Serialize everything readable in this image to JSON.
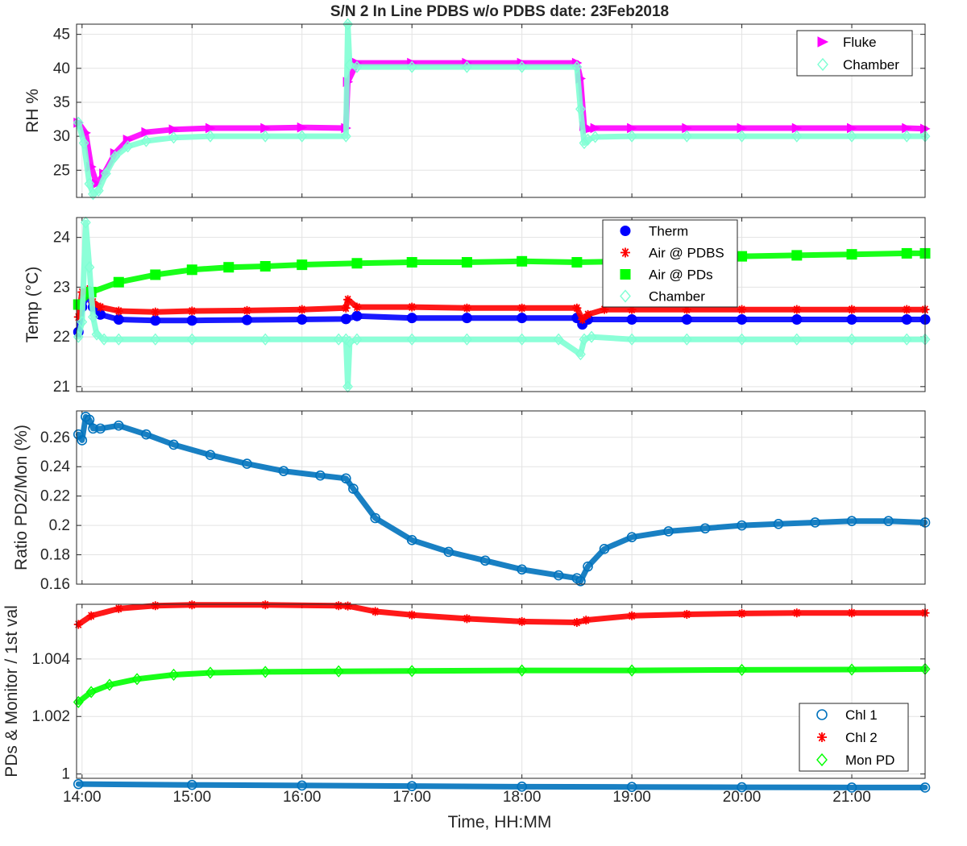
{
  "figure_title": "S/N 2 In Line PDBS w/o PDBS date: 23Feb2018",
  "xlabel": "Time, HH:MM",
  "x_ticks": [
    "14:00",
    "15:00",
    "16:00",
    "17:00",
    "18:00",
    "19:00",
    "20:00",
    "21:00"
  ],
  "colors": {
    "fluke": "#ff00ff",
    "chamber": "#7fffd4",
    "therm": "#0000ff",
    "air_pdbs": "#ff0000",
    "air_pds": "#00ff00",
    "ratio": "#0072bd",
    "chl1": "#0072bd",
    "chl2": "#ff0000",
    "mon_pd": "#00ff00"
  },
  "chart_data": [
    {
      "type": "scatter",
      "title": "S/N 2 In Line PDBS w/o PDBS date: 23Feb2018",
      "xlabel": "",
      "ylabel": "RH %",
      "xlim": [
        "13:57",
        "21:40"
      ],
      "ylim": [
        21,
        46.5
      ],
      "y_ticks": [
        "25",
        "30",
        "35",
        "40",
        "45"
      ],
      "grid": true,
      "legend": "top-right",
      "series": [
        {
          "name": "Fluke",
          "marker": "triangle-right",
          "color": "#ff00ff",
          "x": [
            "13:58",
            "14:02",
            "14:05",
            "14:08",
            "14:12",
            "14:18",
            "14:25",
            "14:35",
            "14:50",
            "15:10",
            "15:40",
            "16:00",
            "16:24",
            "16:25",
            "16:30",
            "17:00",
            "17:30",
            "18:00",
            "18:30",
            "18:32",
            "18:34",
            "18:36",
            "18:40",
            "19:00",
            "19:30",
            "20:00",
            "20:30",
            "21:00",
            "21:30",
            "21:40"
          ],
          "y": [
            32.0,
            30.5,
            25.5,
            23.0,
            24.5,
            27.5,
            29.5,
            30.6,
            31.0,
            31.2,
            31.2,
            31.3,
            31.2,
            38.0,
            40.8,
            40.8,
            40.8,
            40.8,
            40.8,
            38.5,
            31.5,
            31.0,
            31.2,
            31.2,
            31.2,
            31.2,
            31.2,
            31.2,
            31.2,
            31.1
          ]
        },
        {
          "name": "Chamber",
          "marker": "diamond",
          "color": "#7fffd4",
          "x": [
            "13:58",
            "14:01",
            "14:04",
            "14:06",
            "14:09",
            "14:13",
            "14:18",
            "14:25",
            "14:35",
            "14:50",
            "15:10",
            "15:40",
            "16:00",
            "16:24",
            "16:25",
            "16:26",
            "16:30",
            "17:00",
            "17:30",
            "18:00",
            "18:30",
            "18:32",
            "18:34",
            "18:36",
            "18:40",
            "19:00",
            "19:30",
            "20:00",
            "20:30",
            "21:00",
            "21:30",
            "21:40"
          ],
          "y": [
            32.0,
            29.0,
            23.0,
            21.5,
            22.0,
            24.5,
            27.0,
            28.5,
            29.3,
            29.8,
            30.0,
            30.0,
            30.0,
            30.0,
            46.5,
            40.5,
            40.2,
            40.2,
            40.2,
            40.2,
            40.2,
            34.0,
            29.0,
            29.5,
            29.9,
            30.0,
            30.0,
            30.0,
            30.0,
            30.0,
            30.0,
            30.0
          ]
        }
      ]
    },
    {
      "type": "scatter",
      "title": "",
      "xlabel": "",
      "ylabel": "Temp (°C)",
      "xlim": [
        "13:57",
        "21:40"
      ],
      "ylim": [
        20.9,
        24.4
      ],
      "y_ticks": [
        "21",
        "22",
        "23",
        "24"
      ],
      "grid": true,
      "legend": "top-right",
      "series": [
        {
          "name": "Therm",
          "marker": "circle-filled",
          "color": "#0000ff",
          "x": [
            "13:58",
            "14:00",
            "14:03",
            "14:06",
            "14:10",
            "14:20",
            "14:40",
            "15:00",
            "15:30",
            "16:00",
            "16:24",
            "16:30",
            "17:00",
            "17:30",
            "18:00",
            "18:30",
            "18:33",
            "18:36",
            "19:00",
            "19:30",
            "20:00",
            "20:30",
            "21:00",
            "21:30",
            "21:40"
          ],
          "y": [
            22.1,
            22.6,
            22.85,
            22.6,
            22.45,
            22.35,
            22.33,
            22.33,
            22.34,
            22.35,
            22.36,
            22.42,
            22.38,
            22.38,
            22.38,
            22.38,
            22.25,
            22.35,
            22.35,
            22.35,
            22.35,
            22.35,
            22.35,
            22.35,
            22.35
          ]
        },
        {
          "name": "Air @ PDBS",
          "marker": "asterisk",
          "color": "#ff0000",
          "x": [
            "13:58",
            "14:00",
            "14:03",
            "14:06",
            "14:10",
            "14:20",
            "14:40",
            "15:00",
            "15:30",
            "16:00",
            "16:24",
            "16:25",
            "16:30",
            "17:00",
            "17:30",
            "18:00",
            "18:30",
            "18:33",
            "18:36",
            "18:45",
            "19:00",
            "19:30",
            "20:00",
            "20:30",
            "21:00",
            "21:30",
            "21:40"
          ],
          "y": [
            22.4,
            22.9,
            22.95,
            22.7,
            22.6,
            22.52,
            22.5,
            22.52,
            22.53,
            22.55,
            22.58,
            22.75,
            22.6,
            22.6,
            22.58,
            22.58,
            22.58,
            22.35,
            22.45,
            22.55,
            22.55,
            22.55,
            22.55,
            22.55,
            22.55,
            22.55,
            22.55
          ]
        },
        {
          "name": "Air @ PDs",
          "marker": "square-filled",
          "color": "#00ff00",
          "x": [
            "13:58",
            "14:05",
            "14:20",
            "14:40",
            "15:00",
            "15:20",
            "15:40",
            "16:00",
            "16:30",
            "17:00",
            "17:30",
            "18:00",
            "18:30",
            "19:00",
            "19:30",
            "20:00",
            "20:30",
            "21:00",
            "21:30",
            "21:40"
          ],
          "y": [
            22.65,
            22.9,
            23.1,
            23.25,
            23.35,
            23.4,
            23.42,
            23.45,
            23.48,
            23.5,
            23.5,
            23.52,
            23.5,
            23.52,
            23.6,
            23.62,
            23.64,
            23.66,
            23.68,
            23.68
          ]
        },
        {
          "name": "Chamber",
          "marker": "diamond",
          "color": "#7fffd4",
          "x": [
            "13:58",
            "14:00",
            "14:02",
            "14:04",
            "14:06",
            "14:08",
            "14:12",
            "14:20",
            "14:40",
            "15:00",
            "15:40",
            "16:20",
            "16:24",
            "16:25",
            "16:26",
            "16:30",
            "17:00",
            "17:30",
            "18:00",
            "18:20",
            "18:32",
            "18:34",
            "18:38",
            "19:00",
            "19:30",
            "20:00",
            "20:30",
            "21:00",
            "21:30",
            "21:40"
          ],
          "y": [
            22.0,
            22.3,
            24.3,
            23.4,
            22.4,
            22.05,
            21.95,
            21.95,
            21.95,
            21.95,
            21.95,
            21.95,
            21.95,
            21.0,
            21.9,
            21.95,
            21.95,
            21.95,
            21.95,
            21.95,
            21.65,
            21.95,
            22.0,
            21.95,
            21.95,
            21.95,
            21.95,
            21.95,
            21.95,
            21.95
          ]
        }
      ]
    },
    {
      "type": "scatter",
      "title": "",
      "xlabel": "",
      "ylabel": "Ratio PD2/Mon (%)",
      "xlim": [
        "13:57",
        "21:40"
      ],
      "ylim": [
        0.16,
        0.278
      ],
      "y_ticks": [
        "0.16",
        "0.18",
        "0.2",
        "0.22",
        "0.24",
        "0.26"
      ],
      "grid": true,
      "legend": "none",
      "series": [
        {
          "name": "",
          "marker": "circle",
          "color": "#0072bd",
          "x": [
            "13:58",
            "14:00",
            "14:02",
            "14:04",
            "14:06",
            "14:10",
            "14:20",
            "14:35",
            "14:50",
            "15:10",
            "15:30",
            "15:50",
            "16:10",
            "16:24",
            "16:28",
            "16:40",
            "17:00",
            "17:20",
            "17:40",
            "18:00",
            "18:20",
            "18:30",
            "18:32",
            "18:36",
            "18:45",
            "19:00",
            "19:20",
            "19:40",
            "20:00",
            "20:20",
            "20:40",
            "21:00",
            "21:20",
            "21:40"
          ],
          "y": [
            0.262,
            0.258,
            0.274,
            0.272,
            0.266,
            0.266,
            0.268,
            0.262,
            0.255,
            0.248,
            0.242,
            0.237,
            0.234,
            0.232,
            0.225,
            0.205,
            0.19,
            0.182,
            0.176,
            0.17,
            0.166,
            0.164,
            0.162,
            0.172,
            0.184,
            0.192,
            0.196,
            0.198,
            0.2,
            0.201,
            0.202,
            0.203,
            0.203,
            0.202
          ]
        }
      ]
    },
    {
      "type": "scatter",
      "title": "",
      "xlabel": "Time, HH:MM",
      "ylabel": "PDs & Monitor / 1st val",
      "xlim": [
        "13:57",
        "21:40"
      ],
      "ylim": [
        0.99985,
        1.0059
      ],
      "y_ticks": [
        "1",
        "1.002",
        "1.004"
      ],
      "grid": true,
      "legend": "bottom-right",
      "series": [
        {
          "name": "Chl 1",
          "marker": "circle",
          "color": "#0072bd",
          "x": [
            "13:58",
            "15:00",
            "16:00",
            "17:00",
            "18:00",
            "19:00",
            "20:00",
            "21:00",
            "21:40"
          ],
          "y": [
            0.99965,
            0.99962,
            0.9996,
            0.99958,
            0.99956,
            0.99955,
            0.99954,
            0.99953,
            0.99953
          ]
        },
        {
          "name": "Chl 2",
          "marker": "asterisk",
          "color": "#ff0000",
          "x": [
            "13:58",
            "14:05",
            "14:20",
            "14:40",
            "15:00",
            "15:40",
            "16:20",
            "16:25",
            "16:40",
            "17:00",
            "17:30",
            "18:00",
            "18:30",
            "18:35",
            "19:00",
            "19:30",
            "20:00",
            "20:30",
            "21:00",
            "21:40"
          ],
          "y": [
            1.0052,
            1.0055,
            1.00575,
            1.00585,
            1.00588,
            1.00588,
            1.00585,
            1.00584,
            1.00565,
            1.00553,
            1.0054,
            1.0053,
            1.00527,
            1.00535,
            1.0055,
            1.00555,
            1.00558,
            1.0056,
            1.0056,
            1.0056
          ]
        },
        {
          "name": "Mon PD",
          "marker": "diamond",
          "color": "#00ff00",
          "x": [
            "13:58",
            "14:05",
            "14:15",
            "14:30",
            "14:50",
            "15:10",
            "15:40",
            "16:20",
            "17:00",
            "18:00",
            "19:00",
            "20:00",
            "21:00",
            "21:40"
          ],
          "y": [
            1.0025,
            1.00285,
            1.0031,
            1.0033,
            1.00345,
            1.00352,
            1.00355,
            1.00357,
            1.00358,
            1.0036,
            1.0036,
            1.00362,
            1.00363,
            1.00365
          ]
        }
      ]
    }
  ]
}
